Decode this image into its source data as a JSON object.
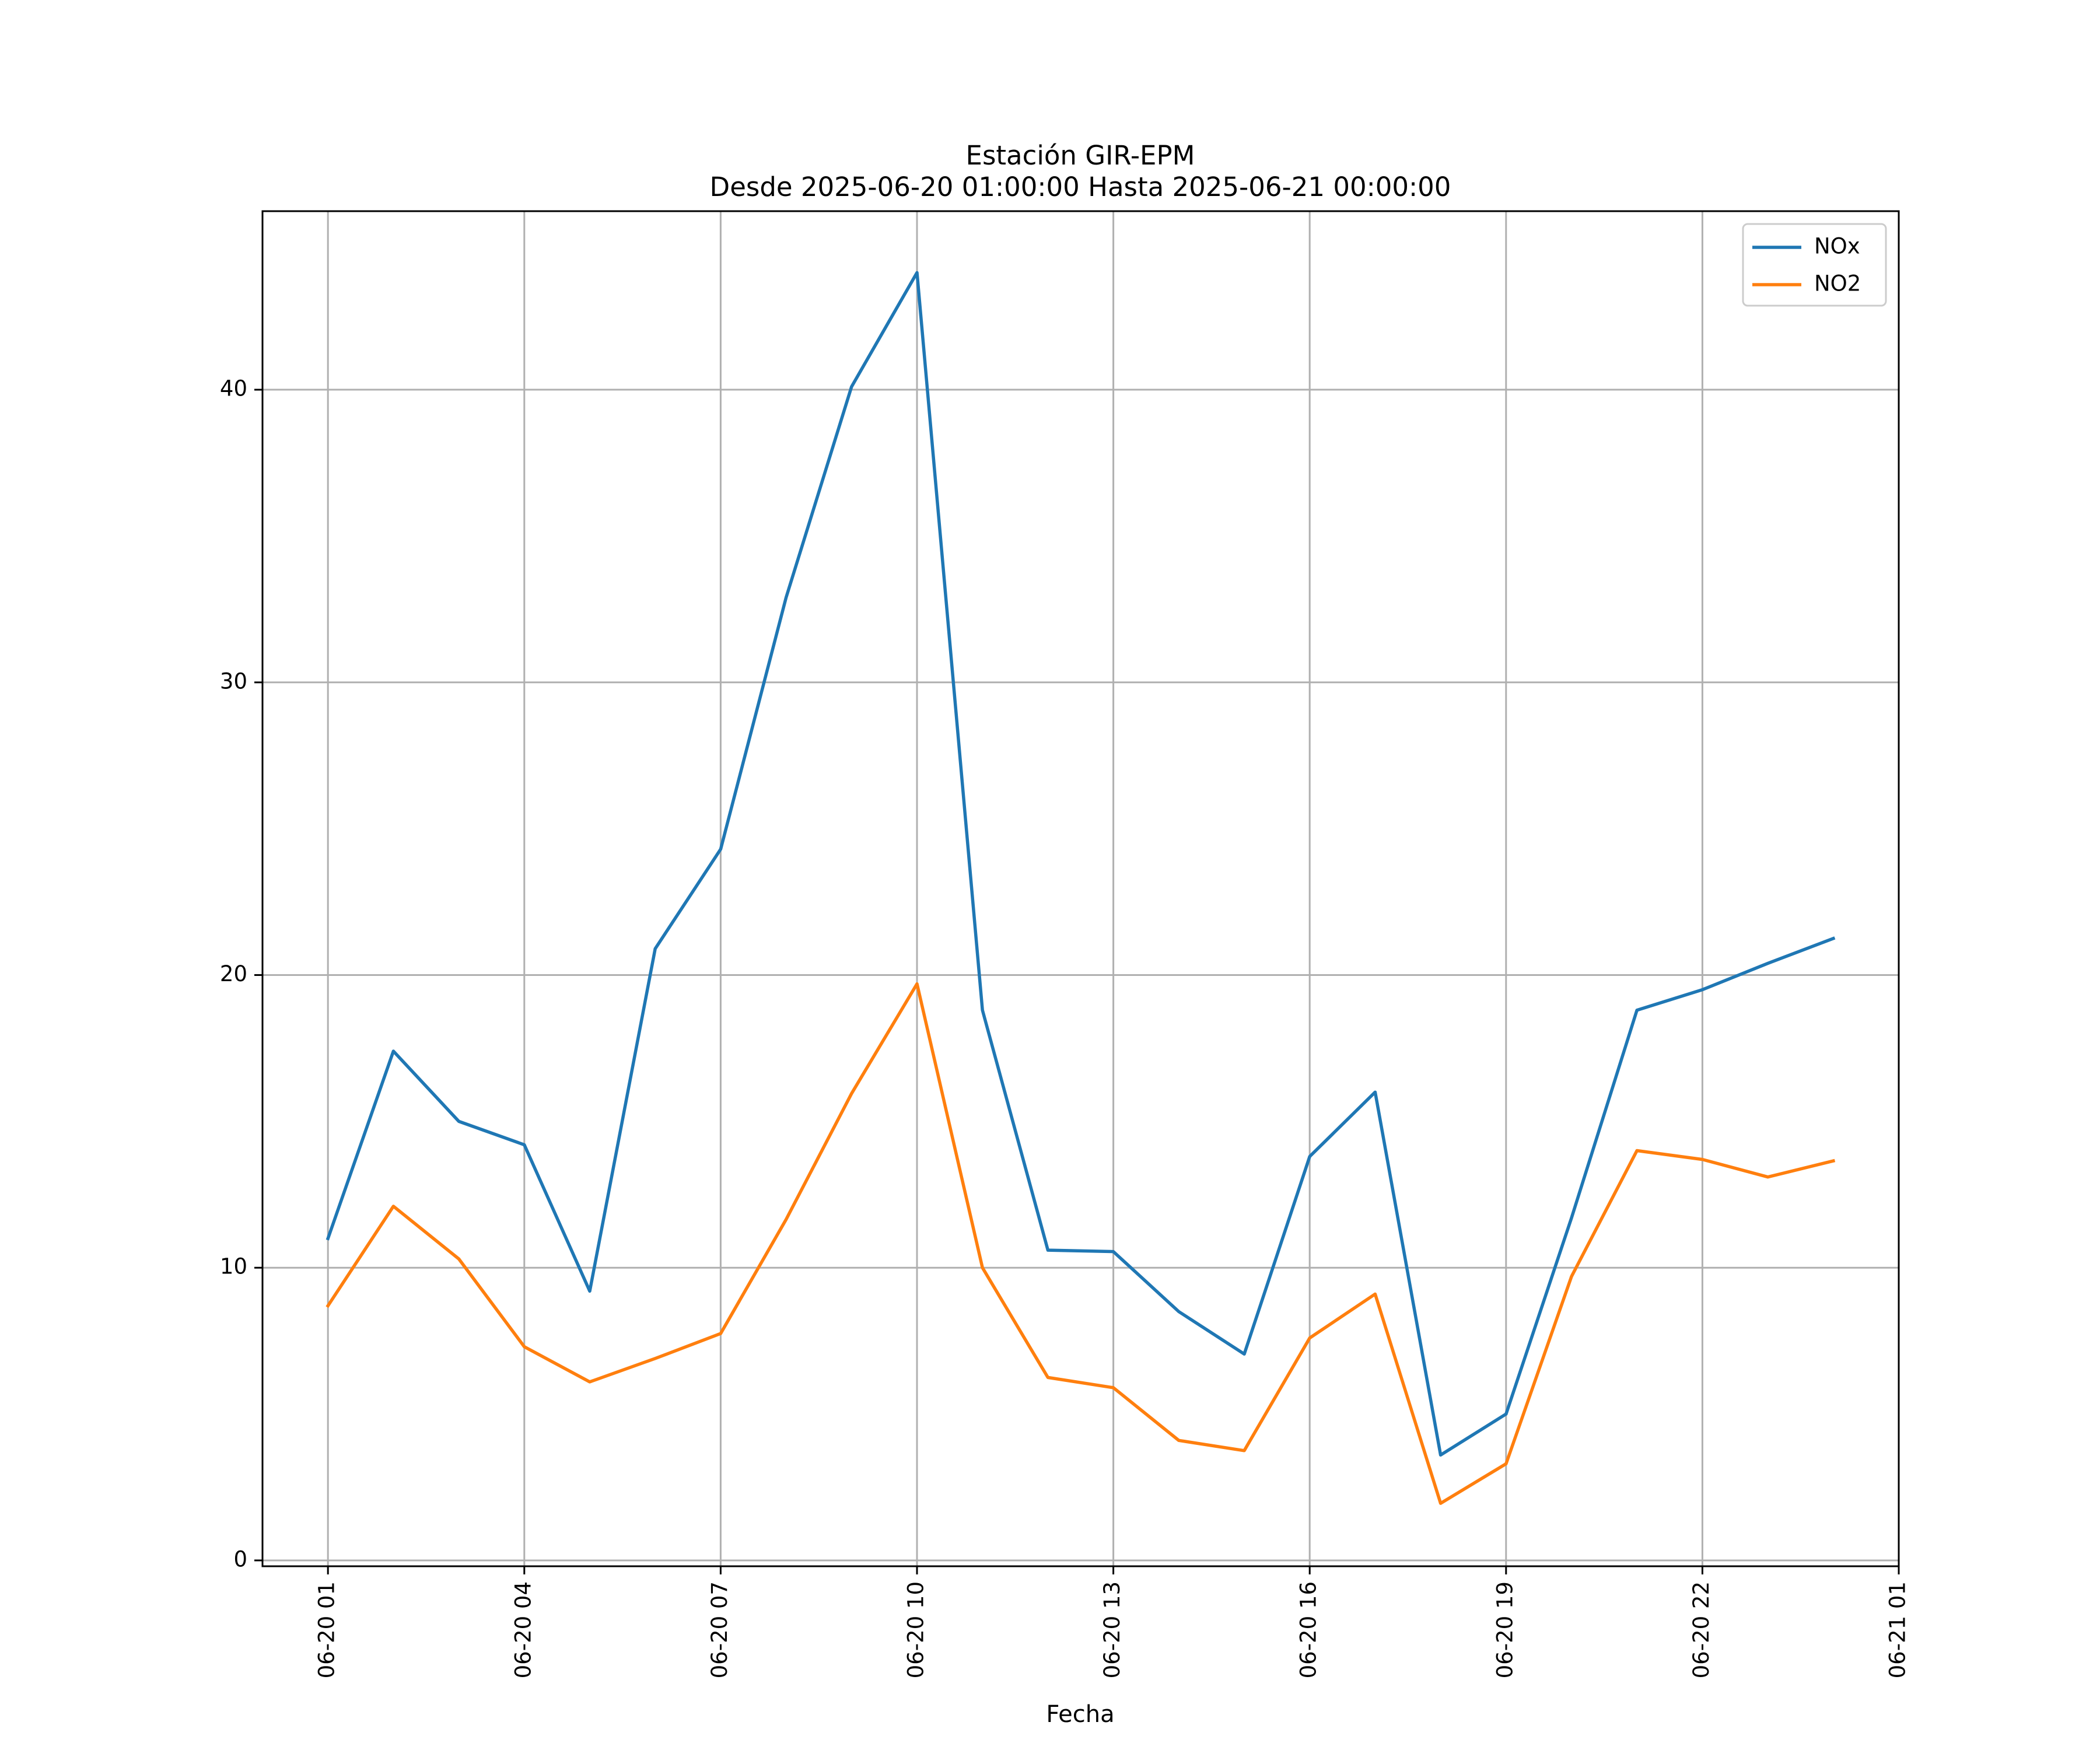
{
  "chart_data": {
    "type": "line",
    "title": "Estación GIR-EPM",
    "subtitle": "Desde 2025-06-20 01:00:00 Hasta 2025-06-21 00:00:00",
    "xlabel": "Fecha",
    "ylabel": "",
    "x": [
      "2025-06-20 01:00",
      "2025-06-20 02:00",
      "2025-06-20 03:00",
      "2025-06-20 04:00",
      "2025-06-20 05:00",
      "2025-06-20 06:00",
      "2025-06-20 07:00",
      "2025-06-20 08:00",
      "2025-06-20 09:00",
      "2025-06-20 10:00",
      "2025-06-20 11:00",
      "2025-06-20 12:00",
      "2025-06-20 13:00",
      "2025-06-20 14:00",
      "2025-06-20 15:00",
      "2025-06-20 16:00",
      "2025-06-20 17:00",
      "2025-06-20 18:00",
      "2025-06-20 19:00",
      "2025-06-20 20:00",
      "2025-06-20 21:00",
      "2025-06-20 22:00",
      "2025-06-20 23:00",
      "2025-06-21 00:00"
    ],
    "series": [
      {
        "name": "NOx",
        "color": "#1f77b4",
        "values": [
          11.0,
          17.4,
          15.0,
          14.2,
          9.2,
          20.9,
          24.3,
          32.9,
          40.1,
          44.0,
          18.8,
          10.6,
          10.55,
          8.5,
          7.05,
          13.8,
          16.0,
          3.6,
          5.0,
          11.7,
          18.8,
          19.5,
          20.4,
          21.25
        ]
      },
      {
        "name": "NO2",
        "color": "#ff7f0e",
        "values": [
          8.7,
          12.1,
          10.3,
          7.3,
          6.1,
          6.9,
          7.75,
          11.65,
          15.95,
          19.7,
          10.0,
          6.25,
          5.9,
          4.1,
          3.75,
          7.6,
          9.1,
          1.95,
          3.3,
          9.7,
          14.0,
          13.7,
          13.1,
          13.65
        ]
      }
    ],
    "xticks": [
      "06-20 01",
      "06-20 04",
      "06-20 07",
      "06-20 10",
      "06-20 13",
      "06-20 16",
      "06-20 19",
      "06-20 22",
      "06-21 01"
    ],
    "yticks": [
      "0",
      "10",
      "20",
      "30",
      "40"
    ],
    "xlim": [
      "2025-06-20 00:00",
      "2025-06-21 01:00"
    ],
    "ylim": [
      -0.2,
      46.1
    ],
    "grid": true,
    "legend_position": "top-right"
  }
}
